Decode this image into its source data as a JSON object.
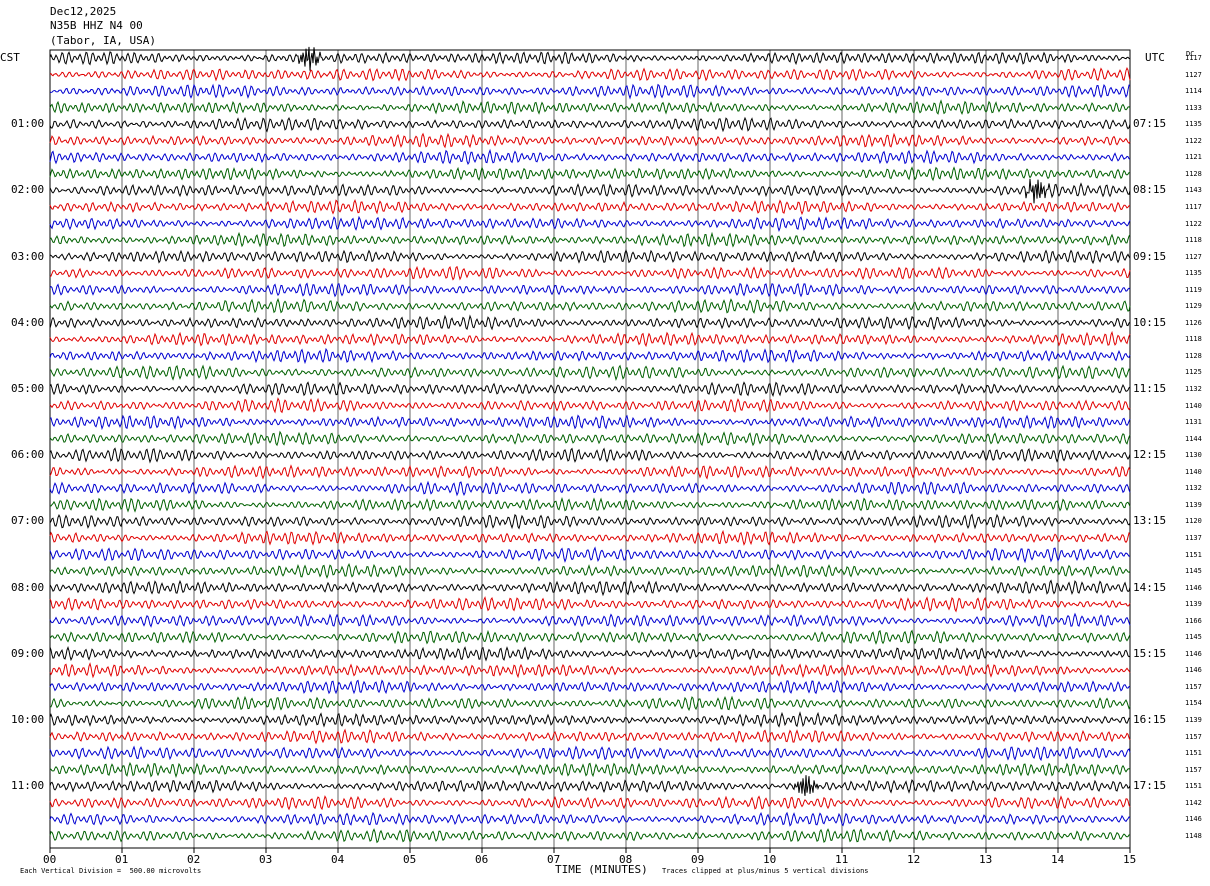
{
  "header": {
    "date": "Dec12,2025",
    "station": "N35B HHZ N4 00",
    "location": "(Tabor, IA, USA)"
  },
  "labels": {
    "left_axis_title": "CST",
    "right_axis_title": "UTC",
    "dc_title": "DC",
    "xlabel": "TIME (MINUTES)",
    "scale_note": "Each Vertical Division =  500.00 microvolts",
    "clip_note": "Traces clipped at plus/minus 5 vertical divisions"
  },
  "chart_data": {
    "type": "line",
    "title": "N35B HHZ N4 00",
    "xlabel": "TIME (MINUTES)",
    "xlim": [
      0,
      15
    ],
    "xticks": [
      "00",
      "01",
      "02",
      "03",
      "04",
      "05",
      "06",
      "07",
      "08",
      "09",
      "10",
      "11",
      "12",
      "13",
      "14",
      "15"
    ],
    "trace_colors": [
      "#000000",
      "#e00000",
      "#0000d0",
      "#006000"
    ],
    "left_time_labels": [
      "01:00",
      "02:00",
      "03:00",
      "04:00",
      "05:00",
      "06:00",
      "07:00",
      "08:00",
      "09:00",
      "10:00",
      "11:00"
    ],
    "right_time_labels": [
      "07:15",
      "08:15",
      "09:15",
      "10:15",
      "11:15",
      "12:15",
      "13:15",
      "14:15",
      "15:15",
      "16:15",
      "17:15"
    ],
    "dc_offsets": [
      1117,
      1127,
      1114,
      1133,
      1135,
      1122,
      1121,
      1128,
      1143,
      1117,
      1122,
      1118,
      1127,
      1135,
      1119,
      1129,
      1126,
      1118,
      1128,
      1125,
      1132,
      1140,
      1131,
      1144,
      1130,
      1140,
      1132,
      1139,
      1120,
      1137,
      1151,
      1145,
      1146,
      1139,
      1166,
      1145,
      1146,
      1146,
      1157,
      1154,
      1139,
      1157,
      1151,
      1157,
      1151,
      1142,
      1146,
      1148
    ],
    "events": [
      {
        "row": 0,
        "minute": 3.6
      },
      {
        "row": 8,
        "minute": 13.7
      },
      {
        "row": 44,
        "minute": 10.5
      }
    ]
  }
}
